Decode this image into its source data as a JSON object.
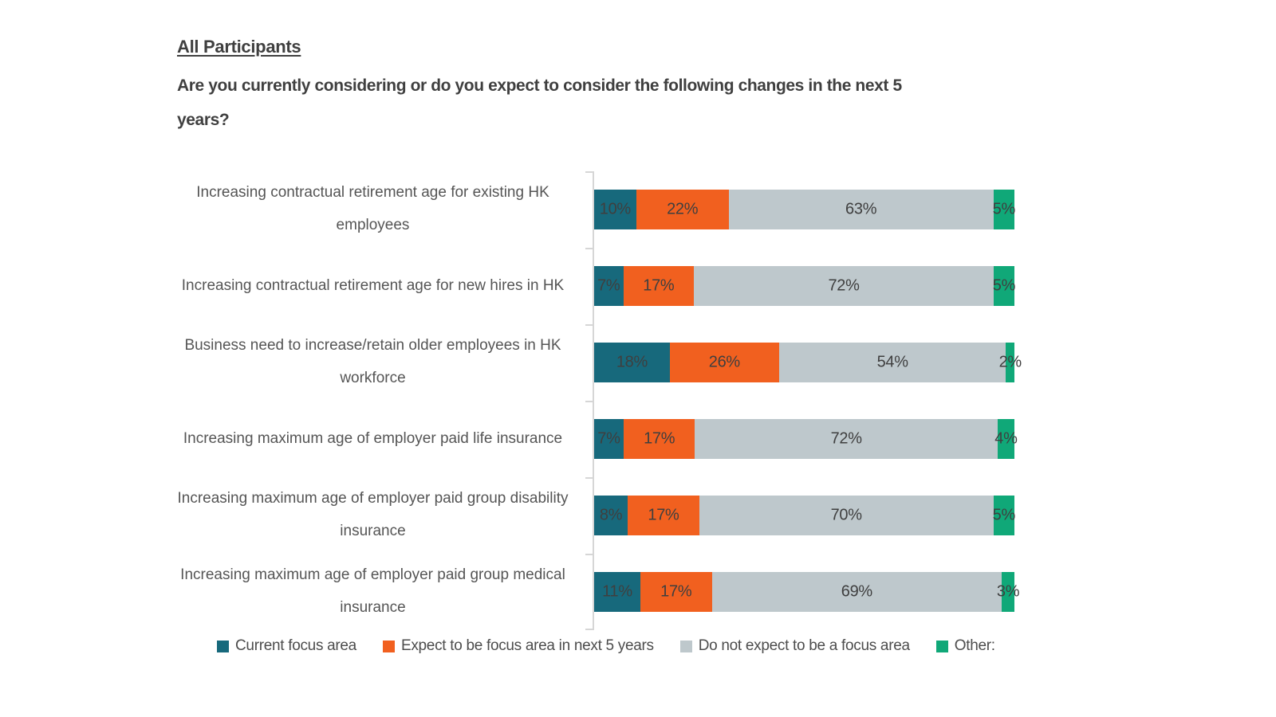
{
  "header": {
    "title": "All Participants",
    "question": "Are you currently considering or do you expect to consider the following changes in the next 5 years?"
  },
  "chart_data": {
    "type": "bar",
    "orientation": "horizontal",
    "stacked": true,
    "unit": "%",
    "xlim": [
      0,
      100
    ],
    "grid": false,
    "value_labels": true,
    "legend_position": "bottom",
    "axis_line_color": "#d6d6d6",
    "value_label_color": "#3f3f3f",
    "categories": [
      "Increasing contractual retirement age for existing HK employees",
      "Increasing contractual retirement age for new hires in HK",
      "Business need to increase/retain older employees in HK workforce",
      "Increasing maximum age of employer paid life insurance",
      "Increasing maximum age of employer paid group disability insurance",
      "Increasing maximum age of employer paid group medical insurance"
    ],
    "series": [
      {
        "name": "Current focus area",
        "color": "#17697c",
        "values": [
          10,
          7,
          18,
          7,
          8,
          11
        ]
      },
      {
        "name": "Expect to be focus area in next 5 years",
        "color": "#f1601f",
        "values": [
          22,
          17,
          26,
          17,
          17,
          17
        ]
      },
      {
        "name": "Do not expect to be a focus area",
        "color": "#bec8cc",
        "values": [
          63,
          72,
          54,
          72,
          70,
          69
        ]
      },
      {
        "name": "Other:",
        "color": "#10a878",
        "values": [
          5,
          5,
          2,
          4,
          5,
          3
        ]
      }
    ]
  }
}
